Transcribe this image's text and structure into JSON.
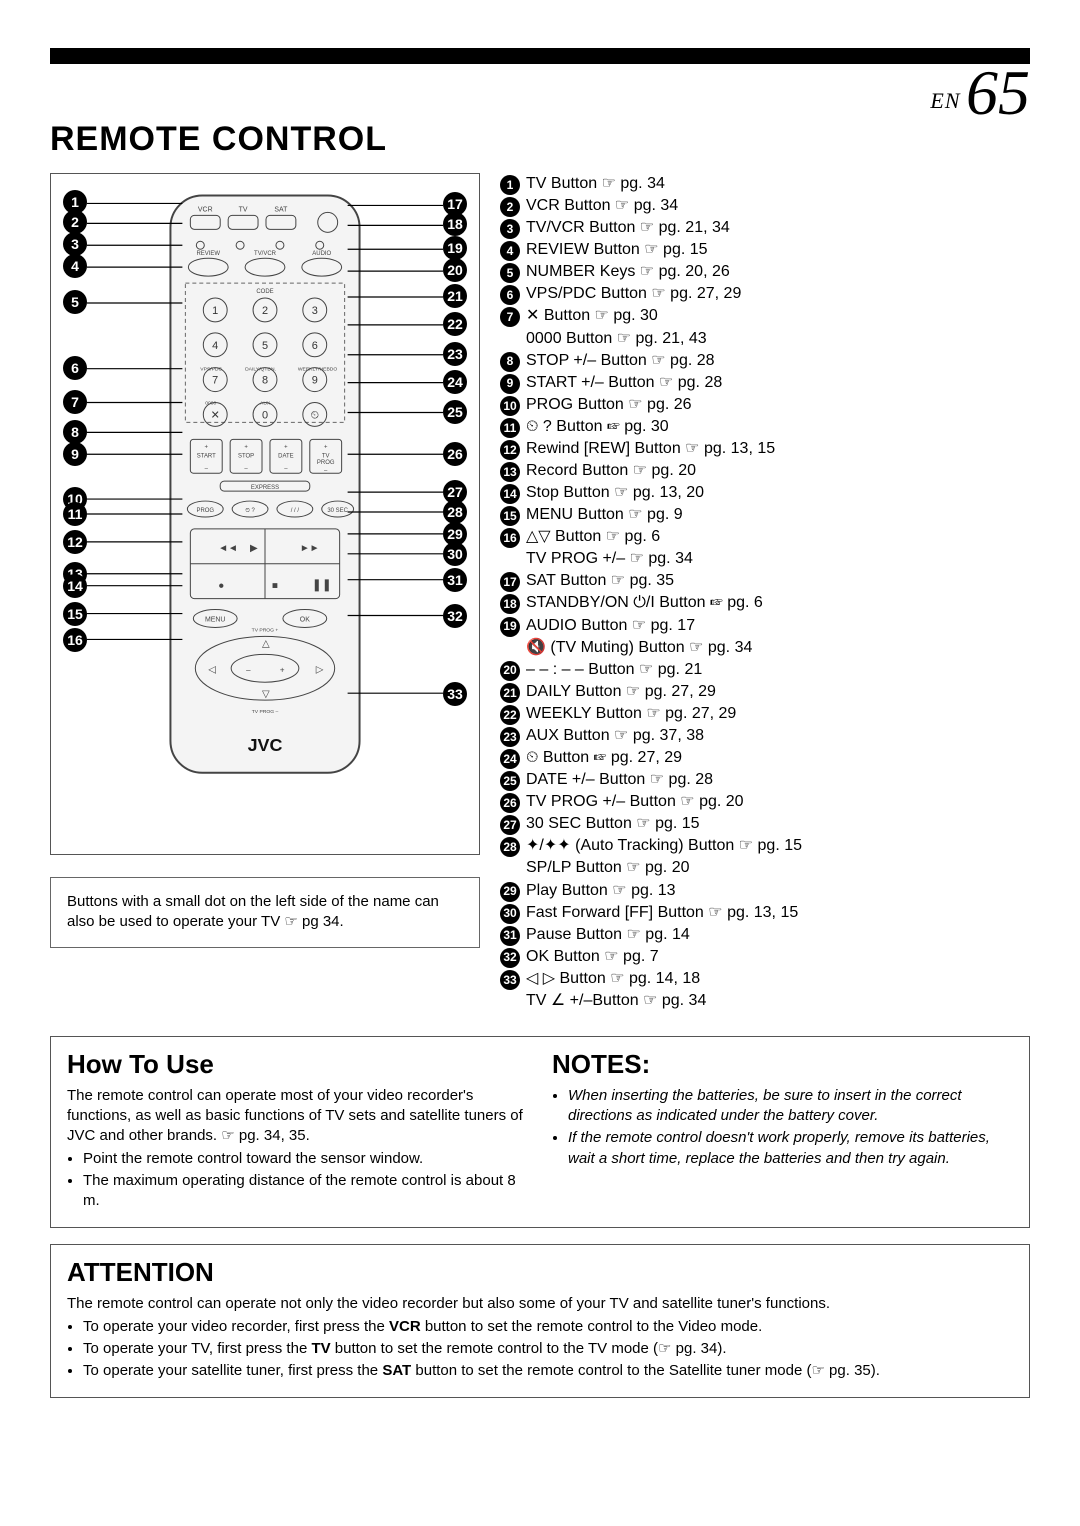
{
  "page": {
    "lang": "EN",
    "number": "65",
    "title": "REMOTE CONTROL"
  },
  "footnote": "Buttons with a small dot on the left side of the name can also be used to operate your TV ☞ pg 34.",
  "remote": {
    "brand": "JVC",
    "left_callouts": [
      1,
      2,
      3,
      4,
      5,
      6,
      7,
      8,
      9,
      10,
      11,
      12,
      13,
      14,
      15,
      16
    ],
    "right_callouts": [
      17,
      18,
      19,
      20,
      21,
      22,
      23,
      24,
      25,
      26,
      27,
      28,
      29,
      30,
      31,
      32,
      33
    ],
    "body_color": "#f4f4f4",
    "line_color": "#444444"
  },
  "refs": [
    {
      "n": "1",
      "text": "TV Button ☞ pg. 34"
    },
    {
      "n": "2",
      "text": "VCR Button ☞ pg. 34"
    },
    {
      "n": "3",
      "text": "TV/VCR Button ☞ pg. 21, 34"
    },
    {
      "n": "4",
      "text": "REVIEW Button ☞ pg. 15"
    },
    {
      "n": "5",
      "text": "NUMBER Keys ☞ pg. 20, 26"
    },
    {
      "n": "6",
      "text": "VPS/PDC Button ☞ pg. 27, 29"
    },
    {
      "n": "7",
      "text": "✕ Button ☞ pg. 30"
    },
    {
      "n": "",
      "text": "0000 Button ☞ pg. 21, 43"
    },
    {
      "n": "8",
      "text": "STOP +/– Button ☞ pg. 28"
    },
    {
      "n": "9",
      "text": "START +/– Button ☞ pg. 28"
    },
    {
      "n": "10",
      "text": "PROG Button ☞ pg. 26"
    },
    {
      "n": "11",
      "text": "⏲ ? Button ☞ pg. 30"
    },
    {
      "n": "12",
      "text": "Rewind [REW] Button ☞ pg. 13, 15"
    },
    {
      "n": "13",
      "text": "Record Button ☞ pg. 20"
    },
    {
      "n": "14",
      "text": "Stop Button ☞ pg. 13, 20"
    },
    {
      "n": "15",
      "text": "MENU Button ☞ pg. 9"
    },
    {
      "n": "16",
      "text": "△▽ Button ☞ pg. 6"
    },
    {
      "n": "",
      "text": "TV PROG +/– ☞ pg. 34"
    },
    {
      "n": "17",
      "text": "SAT Button ☞ pg. 35"
    },
    {
      "n": "18",
      "text": "STANDBY/ON ⏻/I Button ☞ pg. 6"
    },
    {
      "n": "19",
      "text": "AUDIO Button ☞ pg. 17"
    },
    {
      "n": "",
      "text": "🔇 (TV Muting) Button ☞ pg. 34"
    },
    {
      "n": "20",
      "text": "– – : – – Button ☞ pg. 21"
    },
    {
      "n": "21",
      "text": "DAILY Button ☞ pg. 27, 29"
    },
    {
      "n": "22",
      "text": "WEEKLY Button ☞ pg. 27, 29"
    },
    {
      "n": "23",
      "text": "AUX Button ☞ pg. 37, 38"
    },
    {
      "n": "24",
      "text": "⏲ Button ☞ pg. 27, 29"
    },
    {
      "n": "25",
      "text": "DATE +/– Button ☞ pg. 28"
    },
    {
      "n": "26",
      "text": "TV PROG +/– Button ☞ pg. 20"
    },
    {
      "n": "27",
      "text": "30 SEC Button ☞ pg. 15"
    },
    {
      "n": "28",
      "text": "✦/✦✦ (Auto Tracking) Button ☞ pg. 15"
    },
    {
      "n": "",
      "text": "SP/LP Button ☞ pg. 20"
    },
    {
      "n": "29",
      "text": "Play Button ☞ pg. 13"
    },
    {
      "n": "30",
      "text": "Fast Forward [FF] Button ☞ pg. 13, 15"
    },
    {
      "n": "31",
      "text": "Pause Button ☞ pg. 14"
    },
    {
      "n": "32",
      "text": "OK Button ☞ pg. 7"
    },
    {
      "n": "33",
      "text": "◁ ▷ Button ☞ pg. 14, 18"
    },
    {
      "n": "",
      "text": "TV ∠ +/–Button ☞ pg. 34"
    }
  ],
  "howToUse": {
    "heading": "How To Use",
    "intro": "The remote control can operate most of your video recorder's functions, as well as basic functions of TV sets and satellite tuners of JVC and other brands. ☞ pg. 34, 35.",
    "bullets": [
      "Point the remote control toward the sensor window.",
      "The maximum operating distance of the remote control is about 8 m."
    ]
  },
  "notes": {
    "heading": "NOTES:",
    "bullets": [
      "When inserting the batteries, be sure to insert in the correct directions as indicated under the battery cover.",
      "If the remote control doesn't work properly, remove its batteries, wait a short time, replace the batteries and then try again."
    ]
  },
  "attention": {
    "heading": "ATTENTION",
    "intro": "The remote control can operate not only the video recorder but also some of your TV and satellite tuner's functions.",
    "bullets": [
      "To operate your video recorder, first press the <b>VCR</b> button to set the remote control to the Video mode.",
      "To operate your TV, first press the <b>TV</b> button to set the remote control to the TV mode (☞ pg. 34).",
      "To operate your satellite tuner, first press the <b>SAT</b> button to set the remote control to the Satellite tuner mode (☞ pg. 35)."
    ]
  }
}
